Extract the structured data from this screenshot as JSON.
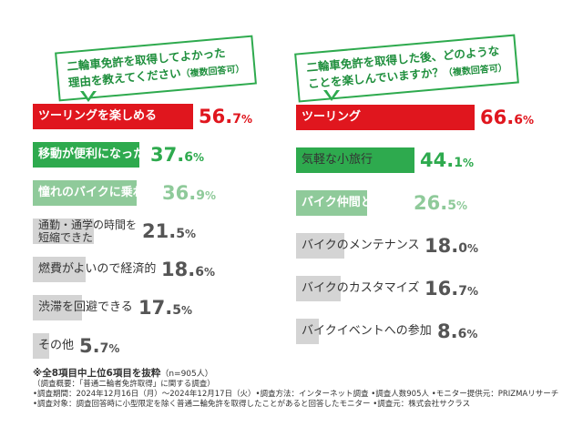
{
  "colors": {
    "red": "#e0161e",
    "green": "#2eaa4e",
    "light_green": "#8fca9a",
    "gray": "#d4d4d4"
  },
  "chart_data": [
    {
      "type": "bar",
      "orientation": "horizontal",
      "title_line1": "二輪車免許を取得してよかった",
      "title_line2": "理由を教えてください",
      "title_note": "（複数回答可）",
      "xlim": [
        0,
        100
      ],
      "categories": [
        "ツーリングを楽しめる",
        "移動が便利になった",
        "憧れのバイクに乗れる",
        "通勤・通学の時間を短縮できた",
        "燃費がよいので経済的",
        "渋滞を回避できる",
        "その他"
      ],
      "label_lines": [
        [
          "ツーリングを楽しめる"
        ],
        [
          "移動が便利になった"
        ],
        [
          "憧れのバイクに乗れる"
        ],
        [
          "通勤・通学の時間を",
          "短縮できた"
        ],
        [
          "燃費がよいので経済的"
        ],
        [
          "渋滞を回避できる"
        ],
        [
          "その他"
        ]
      ],
      "values": [
        56.7,
        37.6,
        36.9,
        21.5,
        18.6,
        17.5,
        5.7
      ],
      "value_int": [
        "56.",
        "37.",
        "36.",
        "21.",
        "18.",
        "17.",
        "5."
      ],
      "value_dec": [
        "7",
        "6",
        "9",
        "5",
        "6",
        "5",
        "7"
      ],
      "bar_colors": [
        "#e0161e",
        "#2eaa4e",
        "#8fca9a",
        "#d4d4d4",
        "#d4d4d4",
        "#d4d4d4",
        "#d4d4d4"
      ],
      "value_colors": [
        "#e0161e",
        "#2eaa4e",
        "#8fca9a",
        "#555555",
        "#555555",
        "#555555",
        "#555555"
      ],
      "label_colors": [
        "#ffffff",
        "#ffffff",
        "#ffffff",
        "#333333",
        "#333333",
        "#333333",
        "#333333"
      ]
    },
    {
      "type": "bar",
      "orientation": "horizontal",
      "title_line1": "二輪車免許を取得した後、どのような",
      "title_line2": "ことを楽しんでいますか？",
      "title_note": "（複数回答可）",
      "xlim": [
        0,
        100
      ],
      "categories": [
        "ツーリング",
        "気軽な小旅行",
        "バイク仲間との交流",
        "バイクのメンテナンス",
        "バイクのカスタマイズ",
        "バイクイベントへの参加"
      ],
      "label_lines": [
        [
          "ツーリング"
        ],
        [
          "気軽な小旅行"
        ],
        [
          "バイク仲間との交流"
        ],
        [
          "バイクのメンテナンス"
        ],
        [
          "バイクのカスタマイズ"
        ],
        [
          "バイクイベントへの参加"
        ]
      ],
      "values": [
        66.6,
        44.1,
        26.5,
        18.0,
        16.7,
        8.6
      ],
      "value_int": [
        "66.",
        "44.",
        "26.",
        "18.",
        "16.",
        "8."
      ],
      "value_dec": [
        "6",
        "1",
        "5",
        "0",
        "7",
        "6"
      ],
      "bar_colors": [
        "#e0161e",
        "#2eaa4e",
        "#8fca9a",
        "#d4d4d4",
        "#d4d4d4",
        "#d4d4d4"
      ],
      "value_colors": [
        "#e0161e",
        "#2eaa4e",
        "#8fca9a",
        "#555555",
        "#555555",
        "#555555"
      ],
      "label_colors": [
        "#ffffff",
        "#333333",
        "#ffffff",
        "#333333",
        "#333333",
        "#333333"
      ]
    }
  ],
  "footer": {
    "footnote": "※全8項目中上位6項目を抜粋",
    "sample": "（n=905人）",
    "lines": [
      "（調査概要：「普通二輪者免許取得」に関する調査）",
      "•調査期間：2024年12月16日（月）〜2024年12月17日（火）•調査方法：インターネット調査 •調査人数905人 •モニター提供元：PRIZMAリサーチ",
      "•調査対象：調査回答時に小型限定を除く普通二輪免許を取得したことがあると回答したモニター •調査元：株式会社サクラス"
    ]
  }
}
